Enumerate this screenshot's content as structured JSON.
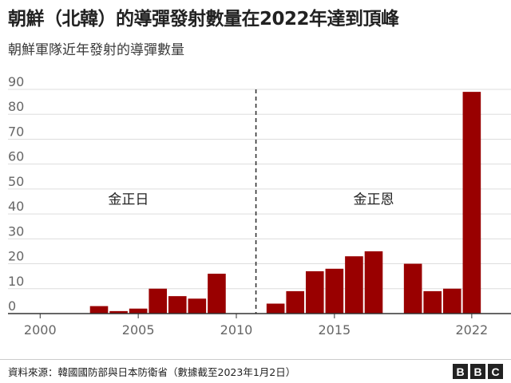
{
  "title": "朝鮮（北韓）的導彈發射數量在2022年達到頂峰",
  "subtitle": "朝鮮軍隊近年發射的導彈數量",
  "source": "資料來源：韓國國防部與日本防衛省（數據截至2023年1月2日）",
  "logo": [
    "B",
    "B",
    "C"
  ],
  "colors": {
    "bar": "#990000",
    "grid": "#dddddd",
    "axis": "#333333",
    "text": "#666666"
  },
  "chart_data": {
    "type": "bar",
    "x": [
      2003,
      2004,
      2005,
      2006,
      2007,
      2008,
      2009,
      2012,
      2013,
      2014,
      2015,
      2016,
      2017,
      2019,
      2020,
      2021,
      2022
    ],
    "values": [
      3,
      1,
      2,
      10,
      7,
      6,
      16,
      4,
      9,
      17,
      18,
      23,
      25,
      20,
      9,
      10,
      89
    ],
    "xlim": [
      1999.5,
      2024
    ],
    "ylim": [
      0,
      90
    ],
    "yticks": [
      0,
      10,
      20,
      30,
      40,
      50,
      60,
      70,
      80,
      90
    ],
    "xticks": [
      2000,
      2005,
      2010,
      2015,
      2022
    ],
    "xtick_labels": [
      "2000",
      "2005",
      "2010",
      "2015",
      "2022"
    ],
    "divider_x": 2011,
    "annotations": [
      {
        "text": "金正日",
        "x": 2004.5,
        "y": 44
      },
      {
        "text": "金正恩",
        "x": 2017,
        "y": 44
      }
    ],
    "title": "朝鮮（北韓）的導彈發射數量在2022年達到頂峰",
    "xlabel": "",
    "ylabel": "",
    "grid": true,
    "legend": "none"
  }
}
